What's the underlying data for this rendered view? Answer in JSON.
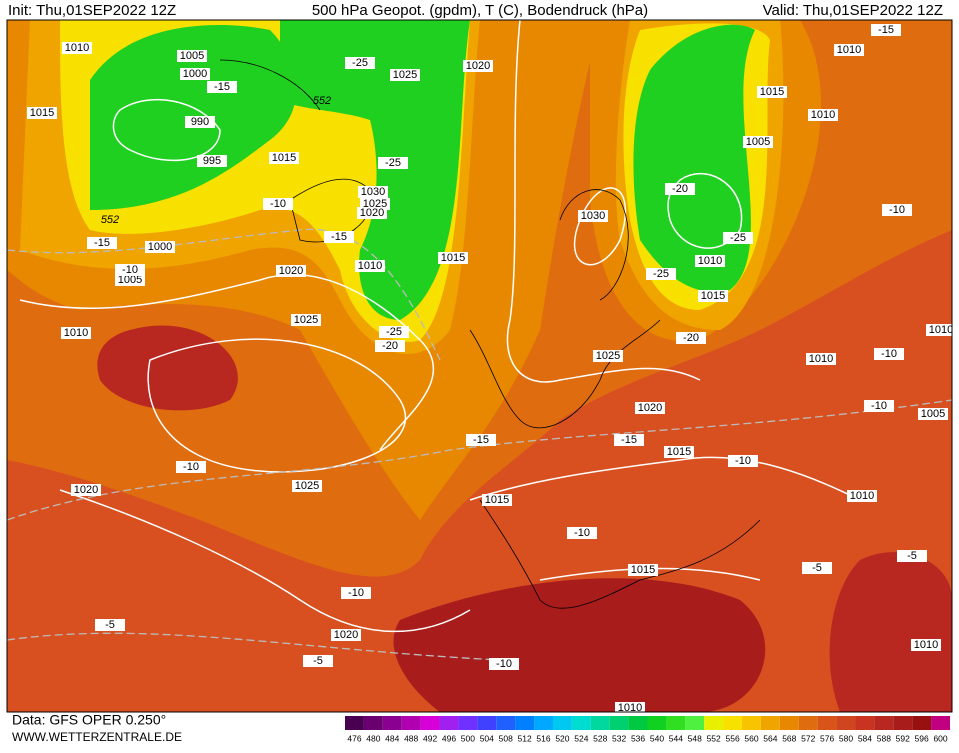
{
  "header": {
    "init": "Init: Thu,01SEP2022 12Z",
    "title": "500 hPa Geopot. (gpdm), T (C), Bodendruck (hPa)",
    "valid": "Valid: Thu,01SEP2022 12Z"
  },
  "footer": {
    "data": "Data: GFS OPER 0.250°",
    "site": "WWW.WETTERZENTRALE.DE"
  },
  "map": {
    "isobar_labels": [
      "1010",
      "1005",
      "1000",
      "990",
      "995",
      "1015",
      "1015",
      "1025",
      "1020",
      "1030",
      "1025",
      "1020",
      "1010",
      "1015",
      "1000",
      "1005",
      "1020",
      "1010",
      "1025",
      "1025",
      "1020",
      "1020",
      "1015",
      "1015",
      "1020",
      "1025",
      "1015",
      "1030",
      "1010",
      "1015",
      "1005",
      "1010",
      "1015",
      "1010",
      "1010",
      "1010",
      "1005",
      "1010",
      "1010",
      "1010"
    ],
    "temperature_labels": [
      "-15",
      "-25",
      "-25",
      "-15",
      "-10",
      "-15",
      "-10",
      "-25",
      "-20",
      "-25",
      "-20",
      "-25",
      "-20",
      "-15",
      "-10",
      "-10",
      "-10",
      "-15",
      "-15",
      "-10",
      "-10",
      "-10",
      "-10",
      "-5",
      "-5",
      "-10",
      "-5",
      "-5"
    ],
    "height_labels": [
      "552",
      "552"
    ]
  },
  "colorbar": {
    "ticks": [
      476,
      480,
      484,
      488,
      492,
      496,
      500,
      504,
      508,
      512,
      516,
      520,
      524,
      528,
      532,
      536,
      540,
      544,
      548,
      552,
      556,
      560,
      564,
      568,
      572,
      576,
      580,
      584,
      588,
      592,
      596,
      600
    ],
    "colors": [
      "#4a0050",
      "#6a0070",
      "#8a0090",
      "#b000b0",
      "#d800d8",
      "#a020f0",
      "#7030ff",
      "#4040ff",
      "#2060ff",
      "#0080ff",
      "#00a8ff",
      "#00c8f0",
      "#00dcd0",
      "#00d8a0",
      "#00d070",
      "#00c840",
      "#10d020",
      "#30e020",
      "#50f040",
      "#e8f000",
      "#f8e000",
      "#f8c400",
      "#f0a400",
      "#e88800",
      "#e06c10",
      "#d85418",
      "#d04420",
      "#c83420",
      "#b82820",
      "#a81c1c",
      "#981010",
      "#c00080"
    ]
  }
}
